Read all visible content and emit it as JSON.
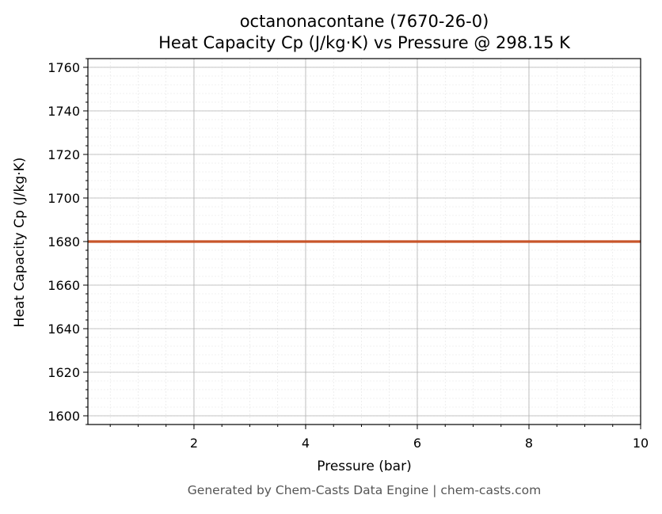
{
  "chart_data": {
    "type": "line",
    "title": "octanonacontane (7670-26-0)",
    "subtitle": "Heat Capacity Cp (J/kg·K) vs Pressure @ 298.15 K",
    "xlabel": "Pressure (bar)",
    "ylabel": "Heat Capacity Cp (J/kg·K)",
    "xlim": [
      0.1,
      10
    ],
    "ylim": [
      1596,
      1764
    ],
    "x_ticks": [
      2,
      4,
      6,
      8,
      10
    ],
    "y_ticks": [
      1600,
      1620,
      1640,
      1660,
      1680,
      1700,
      1720,
      1740,
      1760
    ],
    "x_tick_labels": [
      "2",
      "4",
      "6",
      "8",
      "10"
    ],
    "y_tick_labels": [
      "1600",
      "1620",
      "1640",
      "1660",
      "1680",
      "1700",
      "1720",
      "1740",
      "1760"
    ],
    "grid": true,
    "minor_grid": true,
    "series": [
      {
        "color": "#c8552a",
        "x": [
          0.1,
          10
        ],
        "y": [
          1680,
          1680
        ]
      }
    ]
  },
  "footer": "Generated by Chem-Casts Data Engine | chem-casts.com"
}
